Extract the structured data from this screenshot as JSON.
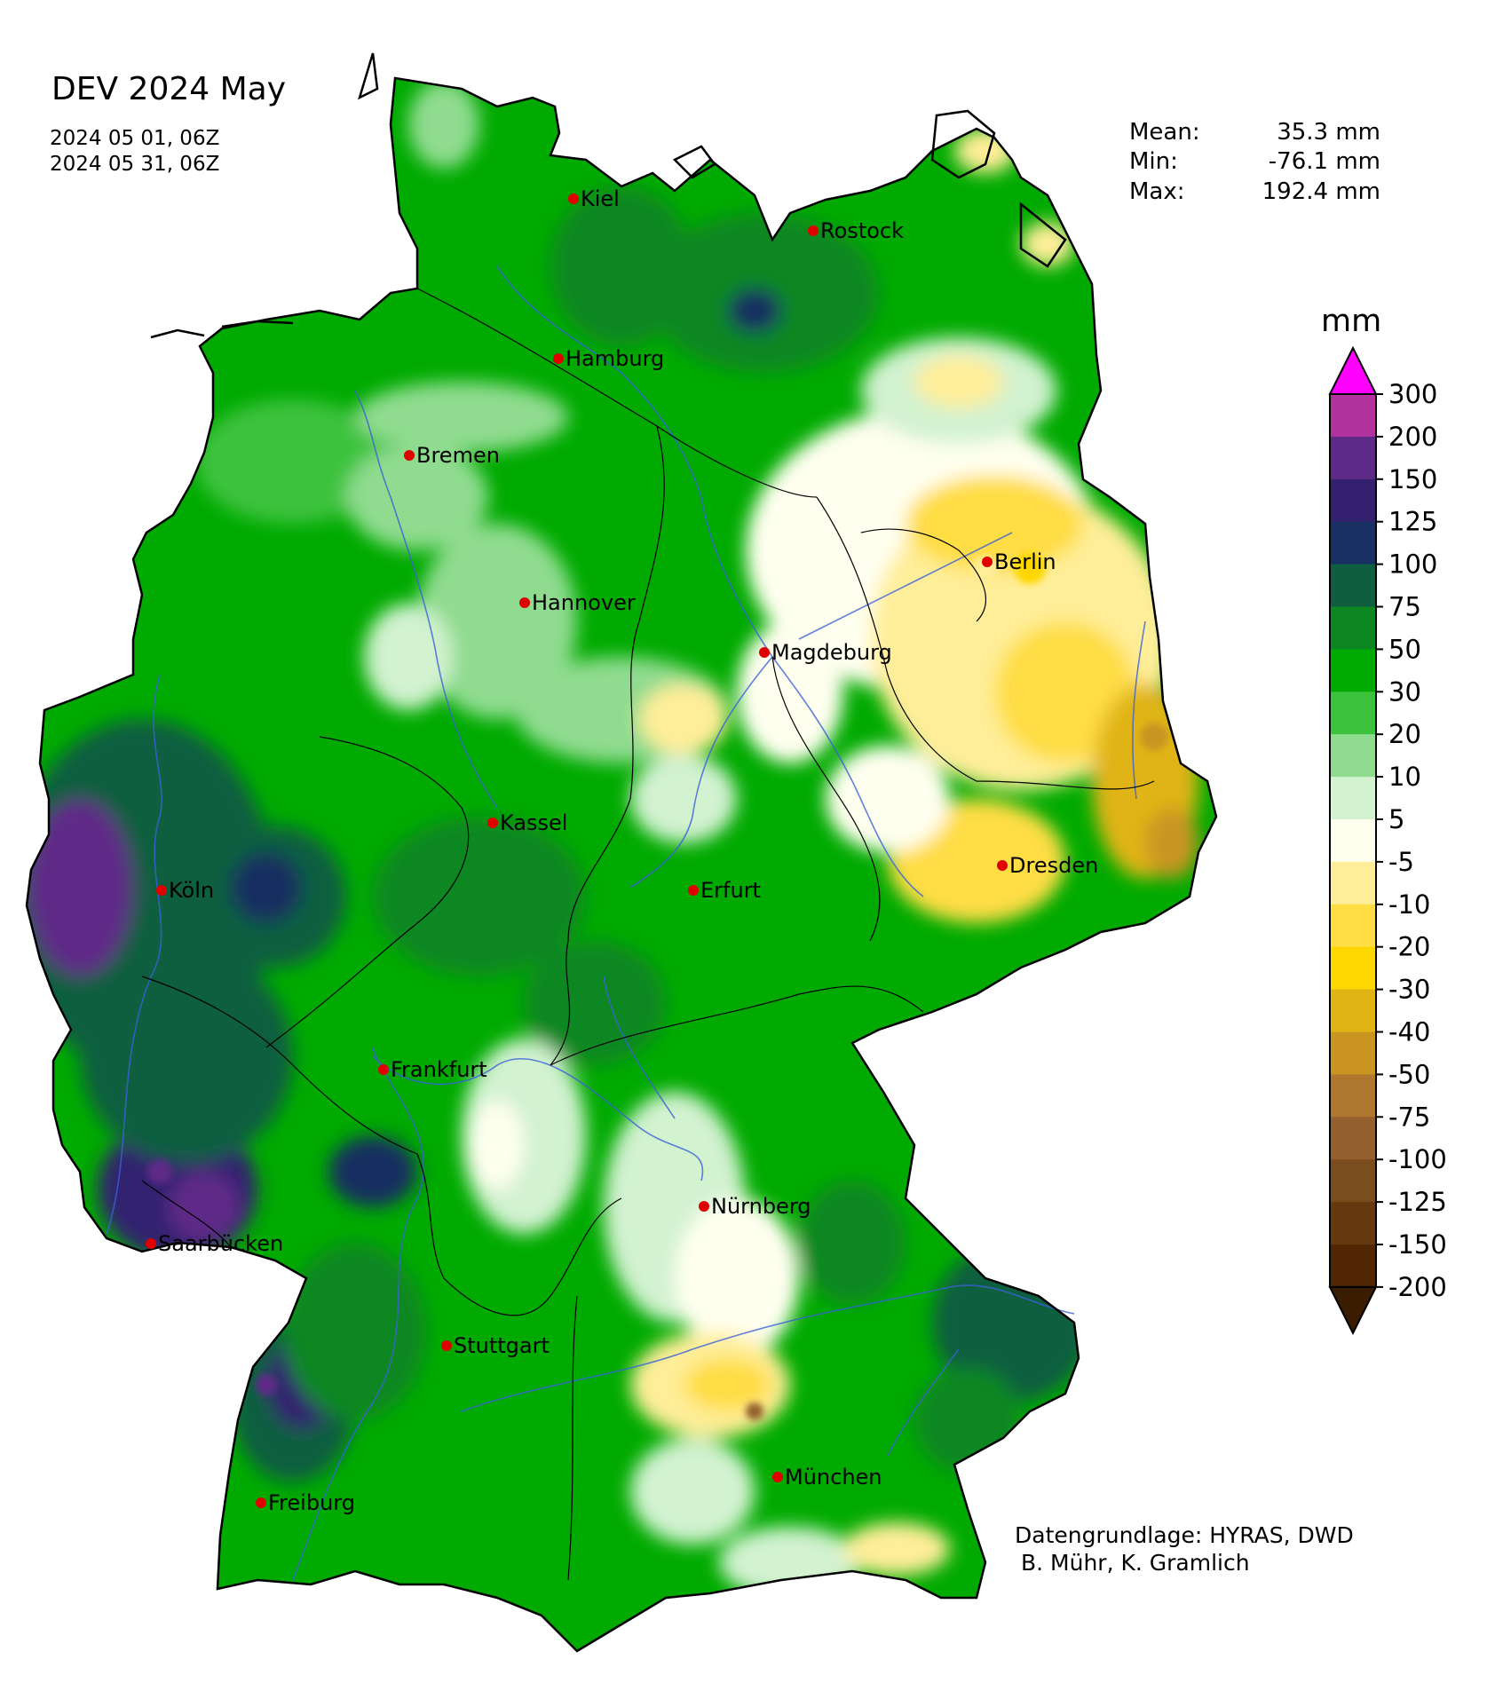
{
  "title": "DEV 2024 May",
  "period": {
    "start": "2024 05 01, 06Z",
    "end": "2024 05 31, 06Z"
  },
  "stats": [
    {
      "label": "Mean:",
      "value": "35.3 mm"
    },
    {
      "label": "Min:",
      "value": "-76.1 mm"
    },
    {
      "label": "Max:",
      "value": "192.4 mm"
    }
  ],
  "legend": {
    "unit": "mm",
    "ticks": [
      "300",
      "200",
      "150",
      "125",
      "100",
      "75",
      "50",
      "30",
      "20",
      "10",
      "5",
      "-5",
      "-10",
      "-20",
      "-30",
      "-40",
      "-50",
      "-75",
      "-100",
      "-125",
      "-150",
      "-200"
    ],
    "colors": [
      "#b3339e",
      "#5e2a87",
      "#332170",
      "#172f61",
      "#0e5e3f",
      "#0c8724",
      "#00aa00",
      "#3dc23d",
      "#8fdb8f",
      "#d2f2d0",
      "#fffff0",
      "#ffee99",
      "#ffdd44",
      "#ffd700",
      "#e0b414",
      "#c99520",
      "#b0782e",
      "#94612e",
      "#7a4d1e",
      "#653810",
      "#512603"
    ],
    "over_color": "#ff00ff",
    "under_color": "#3a1c00"
  },
  "cities": [
    {
      "name": "Kiel"
    },
    {
      "name": "Rostock"
    },
    {
      "name": "Hamburg"
    },
    {
      "name": "Bremen"
    },
    {
      "name": "Berlin"
    },
    {
      "name": "Hannover"
    },
    {
      "name": "Magdeburg"
    },
    {
      "name": "Kassel"
    },
    {
      "name": "Köln"
    },
    {
      "name": "Erfurt"
    },
    {
      "name": "Dresden"
    },
    {
      "name": "Frankfurt"
    },
    {
      "name": "Nürnberg"
    },
    {
      "name": "Saarbücken"
    },
    {
      "name": "Stuttgart"
    },
    {
      "name": "München"
    },
    {
      "name": "Freiburg"
    }
  ],
  "credits": {
    "line1": "Datengrundlage: HYRAS, DWD",
    "line2": " B. Mühr, K. Gramlich"
  }
}
